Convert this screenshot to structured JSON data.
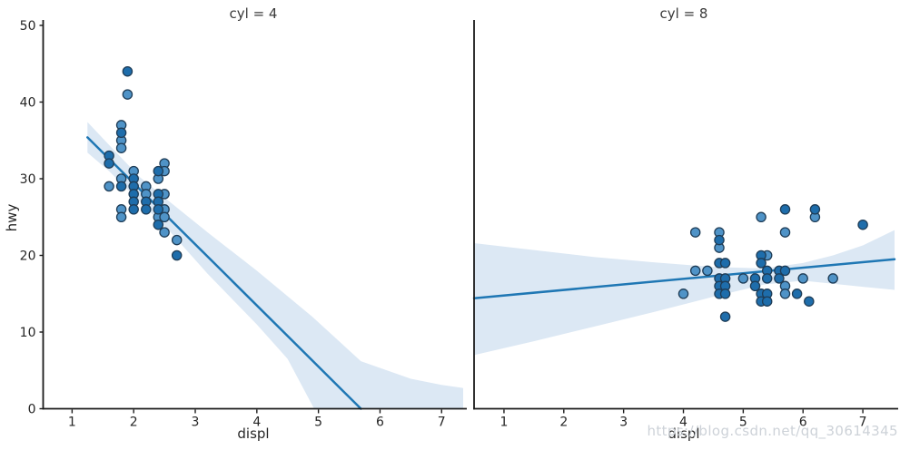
{
  "watermark": {
    "text": "https://blog.csdn.net/qq_30614345"
  },
  "colors": {
    "accent_line": "#1f77b4",
    "ci_band": "#dce8f4",
    "point_light": "#4f93c7",
    "point_dark": "#1e6dab",
    "point_edge": "#1f3d57",
    "text": "#262626",
    "spine": "#1a1a1a",
    "watermark": "#cdd2d8"
  },
  "chart_data": [
    {
      "type": "scatter",
      "title": "cyl = 4",
      "xlabel": "displ",
      "ylabel": "hwy",
      "xlim": [
        0.53,
        7.35
      ],
      "ylim": [
        0,
        50
      ],
      "xticks": [
        1,
        2,
        3,
        4,
        5,
        6,
        7
      ],
      "yticks": [
        0,
        10,
        20,
        30,
        40,
        50
      ],
      "legend": "none",
      "grid": false,
      "points": [
        [
          1.6,
          33,
          1
        ],
        [
          1.6,
          32,
          1
        ],
        [
          1.6,
          29,
          0
        ],
        [
          1.8,
          37,
          0
        ],
        [
          1.8,
          36,
          1
        ],
        [
          1.8,
          35,
          0
        ],
        [
          1.8,
          34,
          0
        ],
        [
          1.8,
          30,
          0
        ],
        [
          1.8,
          29,
          1
        ],
        [
          1.8,
          26,
          0
        ],
        [
          1.8,
          25,
          0
        ],
        [
          1.9,
          44,
          1
        ],
        [
          1.9,
          41,
          0
        ],
        [
          2.0,
          31,
          0
        ],
        [
          2.0,
          30,
          1
        ],
        [
          2.0,
          29,
          1
        ],
        [
          2.0,
          28,
          1
        ],
        [
          2.0,
          27,
          1
        ],
        [
          2.0,
          26,
          1
        ],
        [
          2.2,
          29,
          0
        ],
        [
          2.2,
          28,
          0
        ],
        [
          2.2,
          27,
          1
        ],
        [
          2.2,
          26,
          1
        ],
        [
          2.4,
          31,
          1
        ],
        [
          2.4,
          30,
          0
        ],
        [
          2.4,
          28,
          1
        ],
        [
          2.4,
          27,
          1
        ],
        [
          2.4,
          26,
          1
        ],
        [
          2.4,
          25,
          0
        ],
        [
          2.4,
          24,
          1
        ],
        [
          2.5,
          32,
          0
        ],
        [
          2.5,
          31,
          0
        ],
        [
          2.5,
          28,
          0
        ],
        [
          2.5,
          26,
          0
        ],
        [
          2.5,
          25,
          0
        ],
        [
          2.5,
          23,
          0
        ],
        [
          2.7,
          22,
          0
        ],
        [
          2.7,
          20,
          1
        ]
      ],
      "regression_line": [
        [
          1.25,
          35.4
        ],
        [
          5.69,
          0
        ]
      ],
      "ci_top": [
        [
          1.25,
          37.4
        ],
        [
          1.6,
          34.4
        ],
        [
          2.1,
          30.2
        ],
        [
          2.6,
          26.9
        ],
        [
          3.2,
          23.0
        ],
        [
          4.0,
          18.0
        ],
        [
          4.9,
          12.0
        ],
        [
          5.69,
          6.2
        ],
        [
          6.5,
          3.9
        ],
        [
          7.0,
          3.1
        ],
        [
          7.35,
          2.7
        ]
      ],
      "ci_bottom": [
        [
          1.25,
          33.4
        ],
        [
          1.6,
          31.0
        ],
        [
          2.1,
          27.0
        ],
        [
          2.6,
          23.0
        ],
        [
          3.2,
          17.6
        ],
        [
          4.0,
          11.0
        ],
        [
          4.5,
          6.5
        ],
        [
          4.93,
          0
        ],
        [
          7.35,
          0
        ]
      ]
    },
    {
      "type": "scatter",
      "title": "cyl = 8",
      "xlabel": "displ",
      "ylabel": "",
      "xlim": [
        0.5,
        7.53
      ],
      "ylim": [
        0,
        50
      ],
      "xticks": [
        1,
        2,
        3,
        4,
        5,
        6,
        7
      ],
      "yticks": [],
      "legend": "none",
      "grid": false,
      "points": [
        [
          4.0,
          15,
          0
        ],
        [
          4.2,
          23,
          0
        ],
        [
          4.2,
          18,
          0
        ],
        [
          4.4,
          18,
          0
        ],
        [
          4.6,
          23,
          0
        ],
        [
          4.6,
          22,
          1
        ],
        [
          4.6,
          21,
          0
        ],
        [
          4.6,
          19,
          1
        ],
        [
          4.7,
          19,
          1
        ],
        [
          4.6,
          17,
          1
        ],
        [
          4.7,
          17,
          1
        ],
        [
          4.6,
          16,
          1
        ],
        [
          4.7,
          16,
          1
        ],
        [
          4.6,
          15,
          1
        ],
        [
          4.7,
          15,
          1
        ],
        [
          4.7,
          12,
          1
        ],
        [
          5.0,
          17,
          0
        ],
        [
          5.2,
          17,
          1
        ],
        [
          5.2,
          16,
          1
        ],
        [
          5.3,
          15,
          1
        ],
        [
          5.3,
          14,
          1
        ],
        [
          5.3,
          25,
          0
        ],
        [
          5.3,
          20,
          1
        ],
        [
          5.4,
          20,
          0
        ],
        [
          5.3,
          19,
          1
        ],
        [
          5.4,
          18,
          1
        ],
        [
          5.6,
          18,
          1
        ],
        [
          5.7,
          18,
          1
        ],
        [
          5.6,
          17,
          1
        ],
        [
          5.4,
          17,
          1
        ],
        [
          5.4,
          15,
          1
        ],
        [
          5.4,
          14,
          1
        ],
        [
          5.7,
          26,
          1
        ],
        [
          5.7,
          23,
          0
        ],
        [
          5.7,
          16,
          0
        ],
        [
          5.7,
          15,
          0
        ],
        [
          5.9,
          15,
          1
        ],
        [
          6.0,
          17,
          0
        ],
        [
          6.1,
          14,
          1
        ],
        [
          6.2,
          26,
          1
        ],
        [
          6.2,
          25,
          0
        ],
        [
          6.5,
          17,
          0
        ],
        [
          7.0,
          24,
          1
        ]
      ],
      "regression_line": [
        [
          0.5,
          14.4
        ],
        [
          7.53,
          19.5
        ]
      ],
      "ci_top": [
        [
          0.5,
          21.6
        ],
        [
          1.5,
          20.7
        ],
        [
          2.5,
          19.8
        ],
        [
          3.5,
          19.1
        ],
        [
          4.5,
          18.5
        ],
        [
          5.35,
          18.3
        ],
        [
          6.0,
          19.0
        ],
        [
          6.5,
          20.0
        ],
        [
          7.0,
          21.3
        ],
        [
          7.53,
          23.3
        ]
      ],
      "ci_bottom": [
        [
          0.5,
          7.0
        ],
        [
          1.5,
          8.8
        ],
        [
          2.5,
          10.7
        ],
        [
          3.5,
          12.6
        ],
        [
          4.5,
          14.6
        ],
        [
          5.35,
          16.2
        ],
        [
          6.0,
          16.7
        ],
        [
          6.5,
          16.3
        ],
        [
          7.0,
          15.9
        ],
        [
          7.53,
          15.5
        ]
      ]
    }
  ]
}
